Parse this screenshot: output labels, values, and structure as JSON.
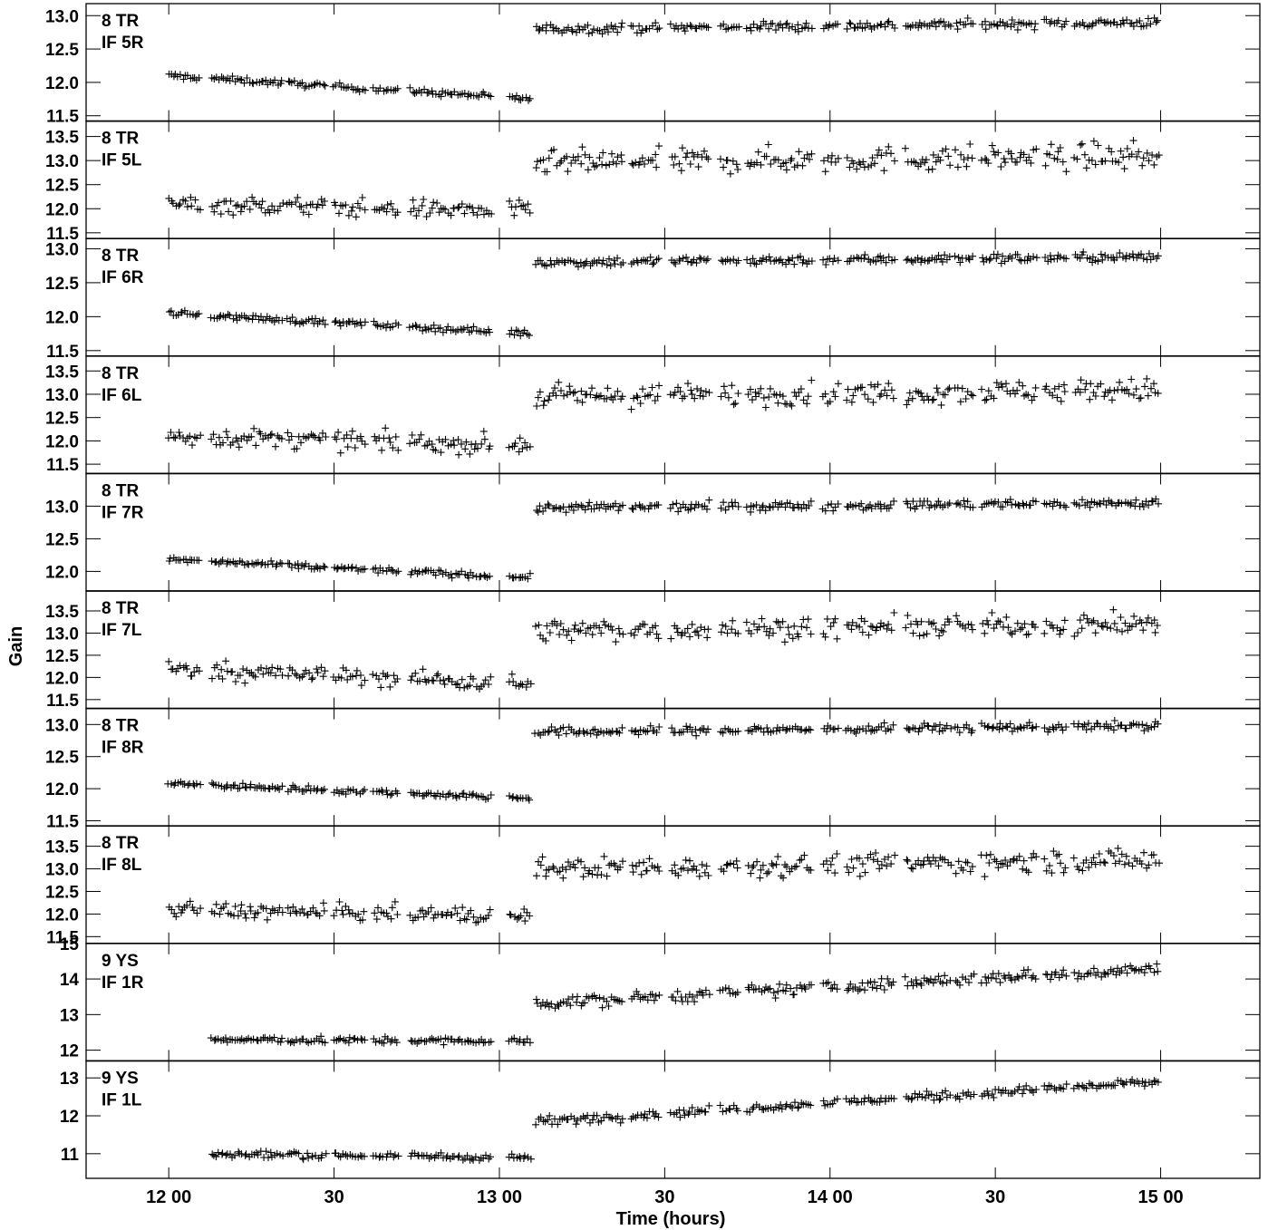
{
  "chart_data": {
    "type": "scatter",
    "marker": "+",
    "ylabel": "Gain",
    "xlabel": "Time (hours)",
    "xlim": [
      11.75,
      15.3
    ],
    "x_ticks": [
      {
        "value": 12.0,
        "label": "12 00"
      },
      {
        "value": 12.5,
        "label": "30"
      },
      {
        "value": 13.0,
        "label": "13 00"
      },
      {
        "value": 13.5,
        "label": "30"
      },
      {
        "value": 14.0,
        "label": "14 00"
      },
      {
        "value": 14.5,
        "label": "30"
      },
      {
        "value": 15.0,
        "label": "15 00"
      }
    ],
    "panels": [
      {
        "label1": "8 TR",
        "label2": "IF 5R",
        "ylim": [
          11.42,
          13.18
        ],
        "ticks": [
          11.5,
          12.0,
          12.5,
          13.0
        ],
        "tick_labels": [
          "11.5",
          "12.0",
          "12.5",
          "13.0"
        ],
        "first_level": 12.1,
        "first_end_level": 11.75,
        "first_scatter": 0.04,
        "second_level": 12.8,
        "second_end_level": 12.9,
        "second_scatter": 0.06
      },
      {
        "label1": "8 TR",
        "label2": "IF 5L",
        "ylim": [
          11.38,
          13.82
        ],
        "ticks": [
          11.5,
          12.0,
          12.5,
          13.0,
          13.5
        ],
        "tick_labels": [
          "11.5",
          "12.0",
          "12.5",
          "13.0",
          "13.5"
        ],
        "first_level": 12.1,
        "first_end_level": 11.95,
        "first_scatter": 0.16,
        "second_level": 12.95,
        "second_end_level": 13.1,
        "second_scatter": 0.22
      },
      {
        "label1": "8 TR",
        "label2": "IF 6R",
        "ylim": [
          11.42,
          13.15
        ],
        "ticks": [
          11.5,
          12.0,
          12.5,
          13.0
        ],
        "tick_labels": [
          "11.5",
          "12.0",
          "12.5",
          "13.0"
        ],
        "first_level": 12.05,
        "first_end_level": 11.75,
        "first_scatter": 0.04,
        "second_level": 12.8,
        "second_end_level": 12.88,
        "second_scatter": 0.06
      },
      {
        "label1": "8 TR",
        "label2": "IF 6L",
        "ylim": [
          11.3,
          13.82
        ],
        "ticks": [
          11.5,
          12.0,
          12.5,
          13.0,
          13.5
        ],
        "tick_labels": [
          "11.5",
          "12.0",
          "12.5",
          "13.0",
          "13.5"
        ],
        "first_level": 12.1,
        "first_end_level": 11.9,
        "first_scatter": 0.17,
        "second_level": 12.95,
        "second_end_level": 13.1,
        "second_scatter": 0.2
      },
      {
        "label1": "8 TR",
        "label2": "IF 7R",
        "ylim": [
          11.7,
          13.5
        ],
        "ticks": [
          12.0,
          12.5,
          13.0
        ],
        "tick_labels": [
          "12.0",
          "12.5",
          "13.0"
        ],
        "first_level": 12.18,
        "first_end_level": 11.9,
        "first_scatter": 0.04,
        "second_level": 12.97,
        "second_end_level": 13.05,
        "second_scatter": 0.06
      },
      {
        "label1": "8 TR",
        "label2": "IF 7L",
        "ylim": [
          11.3,
          13.95
        ],
        "ticks": [
          11.5,
          12.0,
          12.5,
          13.0,
          13.5
        ],
        "tick_labels": [
          "11.5",
          "12.0",
          "12.5",
          "13.0",
          "13.5"
        ],
        "first_level": 12.2,
        "first_end_level": 11.85,
        "first_scatter": 0.17,
        "second_level": 13.05,
        "second_end_level": 13.2,
        "second_scatter": 0.2
      },
      {
        "label1": "8 TR",
        "label2": "IF 8R",
        "ylim": [
          11.42,
          13.25
        ],
        "ticks": [
          11.5,
          12.0,
          12.5,
          13.0
        ],
        "tick_labels": [
          "11.5",
          "12.0",
          "12.5",
          "13.0"
        ],
        "first_level": 12.08,
        "first_end_level": 11.85,
        "first_scatter": 0.04,
        "second_level": 12.88,
        "second_end_level": 12.98,
        "second_scatter": 0.06
      },
      {
        "label1": "8 TR",
        "label2": "IF 8L",
        "ylim": [
          11.35,
          13.95
        ],
        "ticks": [
          11.5,
          12.0,
          12.5,
          13.0,
          13.5
        ],
        "tick_labels": [
          "11.5",
          "12.0",
          "12.5",
          "13.0",
          "13.5"
        ],
        "first_level": 12.1,
        "first_end_level": 11.95,
        "first_scatter": 0.15,
        "second_level": 13.0,
        "second_end_level": 13.2,
        "second_scatter": 0.2
      },
      {
        "label1": "9 YS",
        "label2": "IF 1R",
        "ylim": [
          11.7,
          15.0
        ],
        "ticks": [
          12,
          13,
          14,
          15
        ],
        "tick_labels": [
          "12",
          "13",
          "14",
          "15"
        ],
        "first_level": 12.3,
        "first_end_level": 12.25,
        "first_scatter": 0.08,
        "second_level": 13.3,
        "second_end_level": 14.3,
        "second_scatter": 0.15
      },
      {
        "label1": "9 YS",
        "label2": "IF 1L",
        "ylim": [
          10.35,
          13.45
        ],
        "ticks": [
          11,
          12,
          13
        ],
        "tick_labels": [
          "11",
          "12",
          "13"
        ],
        "first_level": 11.0,
        "first_end_level": 10.9,
        "first_scatter": 0.08,
        "second_level": 11.85,
        "second_end_level": 12.9,
        "second_scatter": 0.1
      }
    ],
    "scans_first_half": [
      [
        12.0,
        12.1
      ],
      [
        12.13,
        12.35
      ],
      [
        12.36,
        12.48
      ],
      [
        12.5,
        12.6
      ],
      [
        12.62,
        12.7
      ],
      [
        12.73,
        12.98
      ],
      [
        13.03,
        13.1
      ]
    ],
    "scans_second_half": [
      [
        13.11,
        13.38
      ],
      [
        13.4,
        13.49
      ],
      [
        13.52,
        13.64
      ],
      [
        13.67,
        13.73
      ],
      [
        13.75,
        13.95
      ],
      [
        13.98,
        14.03
      ],
      [
        14.05,
        14.2
      ],
      [
        14.23,
        14.37
      ],
      [
        14.38,
        14.44
      ],
      [
        14.46,
        14.63
      ],
      [
        14.65,
        14.72
      ],
      [
        14.74,
        15.0
      ]
    ]
  }
}
